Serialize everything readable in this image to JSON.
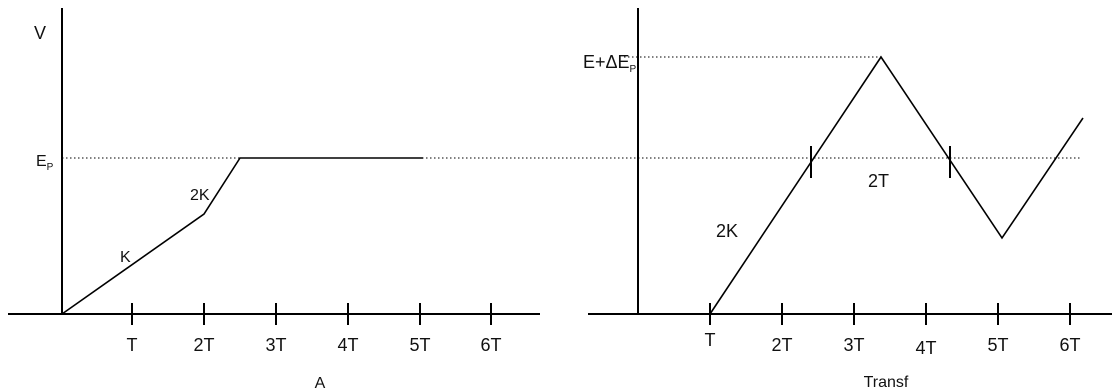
{
  "left_panel": {
    "y_axis_label": "V",
    "level_label": "E",
    "level_label_sub": "P",
    "slope1_label": "K",
    "slope2_label": "2K",
    "x_ticks": [
      "T",
      "2T",
      "3T",
      "4T",
      "5T",
      "6T"
    ],
    "caption": "A"
  },
  "right_panel": {
    "peak_label": "E+ΔE",
    "peak_label_sub": "P",
    "slope_label": "2K",
    "interval_label": "2T",
    "x_ticks": [
      "T",
      "2T",
      "3T",
      "4T",
      "5T",
      "6T"
    ],
    "caption": "Transf"
  }
}
